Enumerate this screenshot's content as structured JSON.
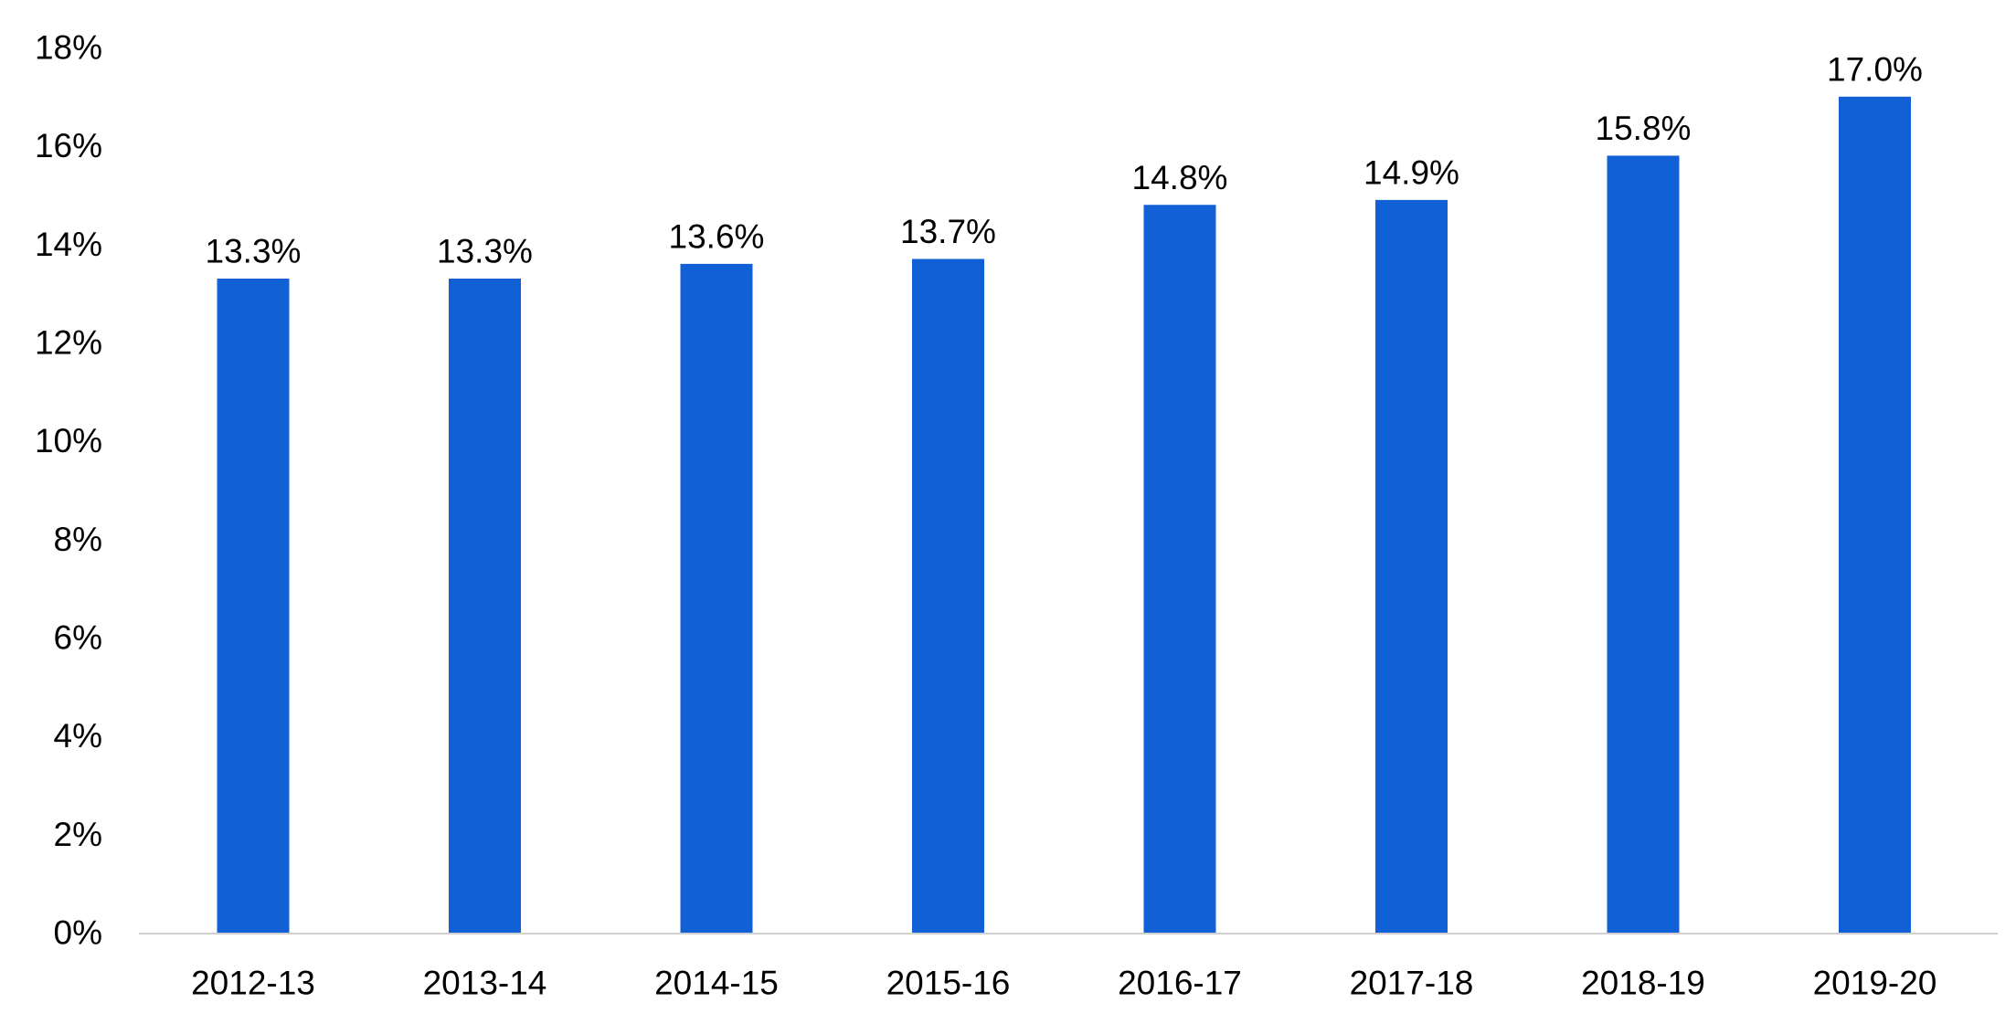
{
  "chart_data": {
    "type": "bar",
    "title": "",
    "xlabel": "",
    "ylabel": "",
    "categories": [
      "2012-13",
      "2013-14",
      "2014-15",
      "2015-16",
      "2016-17",
      "2017-18",
      "2018-19",
      "2019-20"
    ],
    "values": [
      13.3,
      13.3,
      13.6,
      13.7,
      14.8,
      14.9,
      15.8,
      17.0
    ],
    "data_labels": [
      "13.3%",
      "13.3%",
      "13.6%",
      "13.7%",
      "14.8%",
      "14.9%",
      "15.8%",
      "17.0%"
    ],
    "ylim": [
      0,
      18
    ],
    "y_ticks": [
      0,
      2,
      4,
      6,
      8,
      10,
      12,
      14,
      16,
      18
    ],
    "y_tick_labels": [
      "0%",
      "2%",
      "4%",
      "6%",
      "8%",
      "10%",
      "12%",
      "14%",
      "16%",
      "18%"
    ],
    "grid": false,
    "legend": "none",
    "bar_color": "#1160D6",
    "axis_color": "#D0D0D0"
  }
}
